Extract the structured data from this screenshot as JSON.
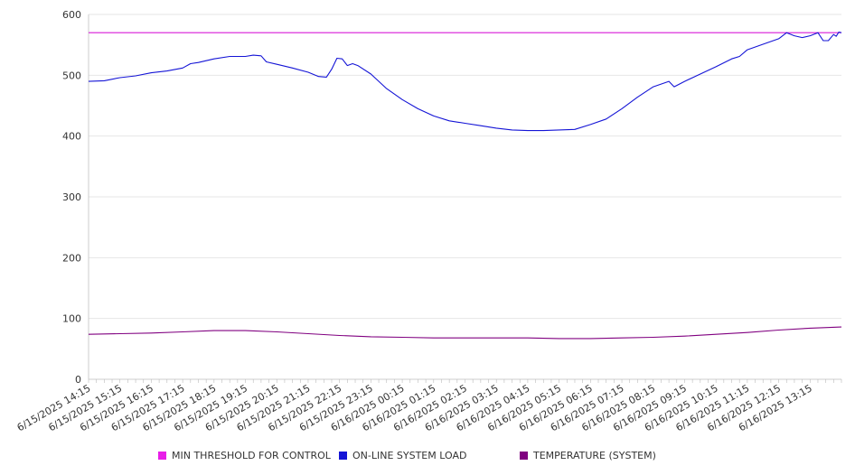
{
  "chart_data": {
    "type": "line",
    "title": "",
    "xlabel": "",
    "ylabel": "",
    "ylim": [
      0,
      600
    ],
    "yticks": [
      0,
      100,
      200,
      300,
      400,
      500,
      600
    ],
    "grid": true,
    "legend_position": "bottom",
    "x_tick_labels": [
      "6/15/2025 14:15",
      "6/15/2025 15:15",
      "6/15/2025 16:15",
      "6/15/2025 17:15",
      "6/15/2025 18:15",
      "6/15/2025 19:15",
      "6/15/2025 20:15",
      "6/15/2025 21:15",
      "6/15/2025 22:15",
      "6/15/2025 23:15",
      "6/16/2025 00:15",
      "6/16/2025 01:15",
      "6/16/2025 02:15",
      "6/16/2025 03:15",
      "6/16/2025 04:15",
      "6/16/2025 05:15",
      "6/16/2025 06:15",
      "6/16/2025 07:15",
      "6/16/2025 08:15",
      "6/16/2025 09:15",
      "6/16/2025 10:15",
      "6/16/2025 11:15",
      "6/16/2025 12:15",
      "6/16/2025 13:15"
    ],
    "x_range": [
      "6/15/2025 14:15",
      "6/16/2025 14:15"
    ],
    "series": [
      {
        "name": "MIN THRESHOLD FOR CONTROL",
        "color": "#d81ad8",
        "points": [
          [
            "6/15/2025 14:15",
            570
          ],
          [
            "6/16/2025 14:15",
            570
          ]
        ]
      },
      {
        "name": "ON-LINE SYSTEM LOAD",
        "color": "#1414d6",
        "points": [
          [
            "6/15/2025 14:15",
            490
          ],
          [
            "6/15/2025 14:45",
            491
          ],
          [
            "6/15/2025 15:15",
            496
          ],
          [
            "6/15/2025 15:45",
            499
          ],
          [
            "6/15/2025 16:15",
            504
          ],
          [
            "6/15/2025 16:45",
            507
          ],
          [
            "6/15/2025 17:15",
            512
          ],
          [
            "6/15/2025 17:30",
            519
          ],
          [
            "6/15/2025 17:45",
            521
          ],
          [
            "6/15/2025 18:15",
            527
          ],
          [
            "6/15/2025 18:45",
            531
          ],
          [
            "6/15/2025 19:15",
            531
          ],
          [
            "6/15/2025 19:30",
            533
          ],
          [
            "6/15/2025 19:45",
            532
          ],
          [
            "6/15/2025 19:55",
            522
          ],
          [
            "6/15/2025 20:15",
            518
          ],
          [
            "6/15/2025 20:45",
            512
          ],
          [
            "6/15/2025 21:15",
            505
          ],
          [
            "6/15/2025 21:35",
            498
          ],
          [
            "6/15/2025 21:50",
            497
          ],
          [
            "6/15/2025 22:00",
            510
          ],
          [
            "6/15/2025 22:10",
            528
          ],
          [
            "6/15/2025 22:20",
            527
          ],
          [
            "6/15/2025 22:30",
            516
          ],
          [
            "6/15/2025 22:40",
            519
          ],
          [
            "6/15/2025 22:50",
            516
          ],
          [
            "6/15/2025 23:15",
            502
          ],
          [
            "6/15/2025 23:45",
            478
          ],
          [
            "6/16/2025 00:15",
            460
          ],
          [
            "6/16/2025 00:45",
            445
          ],
          [
            "6/16/2025 01:15",
            433
          ],
          [
            "6/16/2025 01:45",
            425
          ],
          [
            "6/16/2025 02:15",
            421
          ],
          [
            "6/16/2025 02:45",
            417
          ],
          [
            "6/16/2025 03:15",
            413
          ],
          [
            "6/16/2025 03:45",
            410
          ],
          [
            "6/16/2025 04:15",
            409
          ],
          [
            "6/16/2025 04:45",
            409
          ],
          [
            "6/16/2025 05:15",
            410
          ],
          [
            "6/16/2025 05:45",
            411
          ],
          [
            "6/16/2025 06:15",
            419
          ],
          [
            "6/16/2025 06:45",
            428
          ],
          [
            "6/16/2025 07:15",
            445
          ],
          [
            "6/16/2025 07:45",
            464
          ],
          [
            "6/16/2025 08:15",
            481
          ],
          [
            "6/16/2025 08:45",
            490
          ],
          [
            "6/16/2025 08:55",
            481
          ],
          [
            "6/16/2025 09:15",
            490
          ],
          [
            "6/16/2025 09:45",
            502
          ],
          [
            "6/16/2025 10:15",
            514
          ],
          [
            "6/16/2025 10:45",
            527
          ],
          [
            "6/16/2025 11:00",
            531
          ],
          [
            "6/16/2025 11:15",
            542
          ],
          [
            "6/16/2025 11:45",
            551
          ],
          [
            "6/16/2025 12:15",
            560
          ],
          [
            "6/16/2025 12:30",
            570
          ],
          [
            "6/16/2025 12:45",
            565
          ],
          [
            "6/16/2025 13:00",
            562
          ],
          [
            "6/16/2025 13:15",
            565
          ],
          [
            "6/16/2025 13:30",
            570
          ],
          [
            "6/16/2025 13:40",
            557
          ],
          [
            "6/16/2025 13:50",
            557
          ],
          [
            "6/16/2025 14:00",
            567
          ],
          [
            "6/16/2025 14:05",
            564
          ],
          [
            "6/16/2025 14:10",
            571
          ],
          [
            "6/16/2025 14:15",
            570
          ]
        ]
      },
      {
        "name": "TEMPERATURE (SYSTEM)",
        "color": "#800080",
        "points": [
          [
            "6/15/2025 14:15",
            74
          ],
          [
            "6/15/2025 15:15",
            75
          ],
          [
            "6/15/2025 16:15",
            76
          ],
          [
            "6/15/2025 17:15",
            78
          ],
          [
            "6/15/2025 18:15",
            80
          ],
          [
            "6/15/2025 19:15",
            80
          ],
          [
            "6/15/2025 20:15",
            78
          ],
          [
            "6/15/2025 21:15",
            75
          ],
          [
            "6/15/2025 22:15",
            72
          ],
          [
            "6/15/2025 23:15",
            70
          ],
          [
            "6/16/2025 00:15",
            69
          ],
          [
            "6/16/2025 01:15",
            68
          ],
          [
            "6/16/2025 02:15",
            68
          ],
          [
            "6/16/2025 03:15",
            68
          ],
          [
            "6/16/2025 04:15",
            68
          ],
          [
            "6/16/2025 05:15",
            67
          ],
          [
            "6/16/2025 06:15",
            67
          ],
          [
            "6/16/2025 07:15",
            68
          ],
          [
            "6/16/2025 08:15",
            69
          ],
          [
            "6/16/2025 09:15",
            71
          ],
          [
            "6/16/2025 10:15",
            74
          ],
          [
            "6/16/2025 11:15",
            77
          ],
          [
            "6/16/2025 12:15",
            81
          ],
          [
            "6/16/2025 13:15",
            84
          ],
          [
            "6/16/2025 14:15",
            86
          ]
        ]
      }
    ]
  }
}
